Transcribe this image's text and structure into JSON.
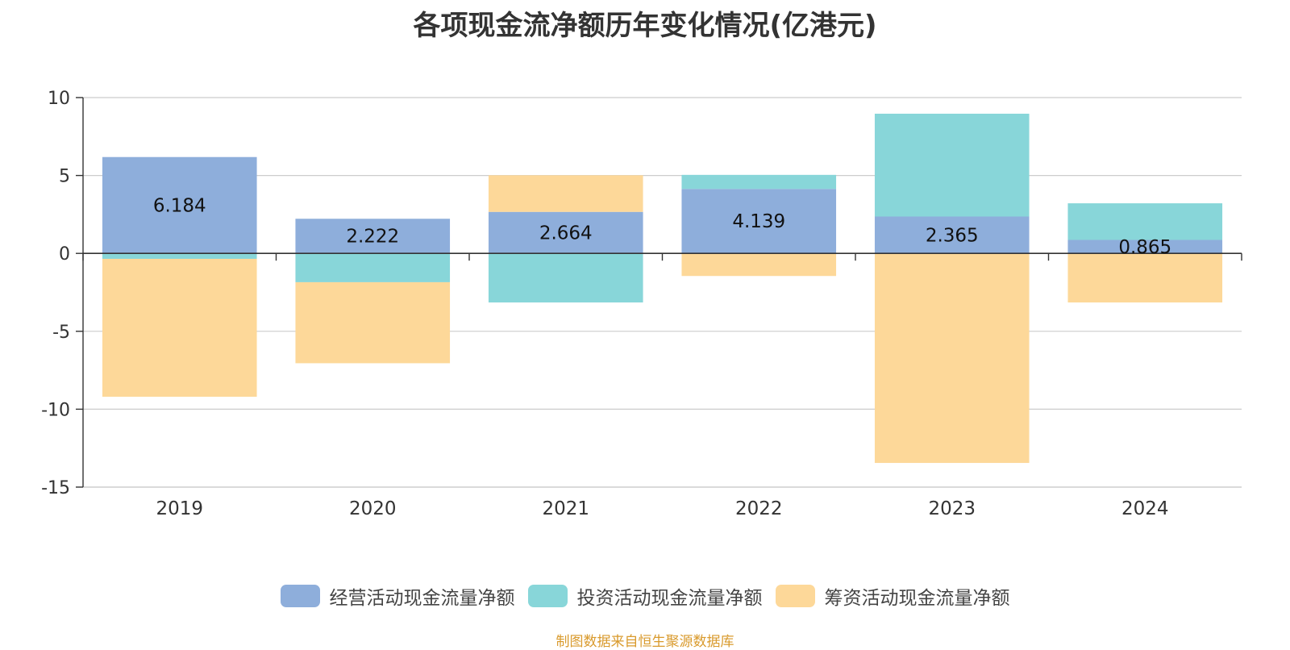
{
  "chart_data": {
    "type": "bar",
    "stacked": true,
    "title": "各项现金流净额历年变化情况(亿港元)",
    "categories": [
      "2019",
      "2020",
      "2021",
      "2022",
      "2023",
      "2024"
    ],
    "ylim": [
      -15,
      10
    ],
    "yticks": [
      10,
      5,
      0,
      -5,
      -10,
      -15
    ],
    "grid": true,
    "legend_position": "bottom",
    "series": [
      {
        "name": "经营活动现金流量净额",
        "color": "#8eaedb",
        "values": [
          6.184,
          2.222,
          2.664,
          4.139,
          2.365,
          0.865
        ],
        "labels": [
          "6.184",
          "2.222",
          "2.664",
          "4.139",
          "2.365",
          "0.865"
        ]
      },
      {
        "name": "投资活动现金流量净额",
        "color": "#88d6d9",
        "values": [
          -0.35,
          -1.85,
          -3.15,
          0.9,
          6.6,
          2.35
        ]
      },
      {
        "name": "筹资活动现金流量净额",
        "color": "#fdd899",
        "values": [
          -8.85,
          -5.2,
          2.35,
          -1.45,
          -13.45,
          -3.15
        ]
      }
    ]
  },
  "source_note": "制图数据来自恒生聚源数据库",
  "colors": {
    "source_note": "#d99a2c",
    "axis": "#333333",
    "grid": "#cccccc",
    "title": "#333333"
  }
}
